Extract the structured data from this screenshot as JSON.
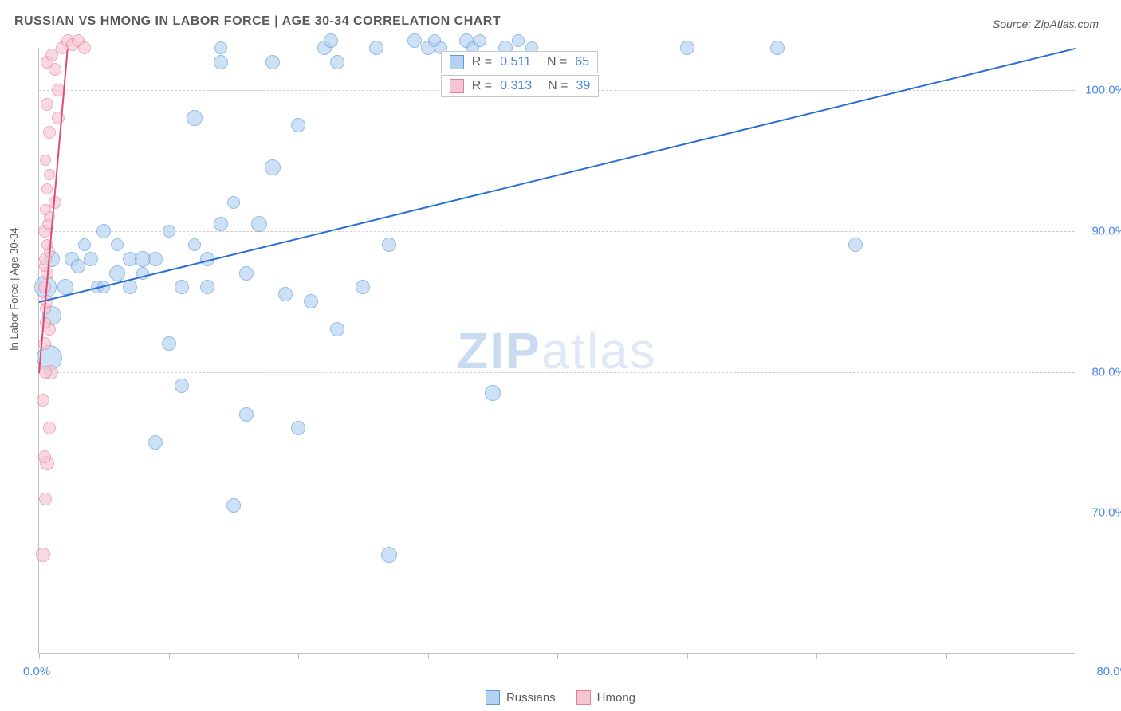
{
  "title": "RUSSIAN VS HMONG IN LABOR FORCE | AGE 30-34 CORRELATION CHART",
  "source": "Source: ZipAtlas.com",
  "watermark": {
    "zip": "ZIP",
    "atlas": "atlas"
  },
  "chart": {
    "type": "scatter",
    "ylabel": "In Labor Force | Age 30-34",
    "background_color": "#ffffff",
    "grid_color": "#cfcfcf",
    "axis_color": "#bfbfbf",
    "label_color": "#5a5a5a",
    "tick_color": "#4a86e8",
    "title_fontsize": 16,
    "label_fontsize": 13,
    "tick_fontsize": 15,
    "xlim": [
      0,
      80
    ],
    "ylim": [
      60,
      103
    ],
    "yticks": [
      70,
      80,
      90,
      100
    ],
    "ytick_labels": [
      "70.0%",
      "80.0%",
      "90.0%",
      "100.0%"
    ],
    "xticks_minor": [
      0,
      10,
      20,
      30,
      40,
      50,
      60,
      70,
      80
    ],
    "xtick_label_left": "0.0%",
    "xtick_label_right": "80.0%",
    "series": [
      {
        "name": "Russians",
        "color_fill": "#b3d1f0",
        "color_stroke": "#5a9ad6",
        "trend_color": "#2a6fd6",
        "trend": {
          "x1": 0,
          "y1": 85,
          "x2": 80,
          "y2": 103
        },
        "stats": {
          "R": "0.511",
          "N": "65"
        },
        "points": [
          {
            "x": 0.5,
            "y": 86,
            "r": 14
          },
          {
            "x": 0.8,
            "y": 81,
            "r": 16
          },
          {
            "x": 1,
            "y": 84,
            "r": 12
          },
          {
            "x": 1,
            "y": 88,
            "r": 10
          },
          {
            "x": 2,
            "y": 86,
            "r": 10
          },
          {
            "x": 2.5,
            "y": 88,
            "r": 9
          },
          {
            "x": 3,
            "y": 87.5,
            "r": 9
          },
          {
            "x": 3.5,
            "y": 89,
            "r": 8
          },
          {
            "x": 4,
            "y": 88,
            "r": 9
          },
          {
            "x": 4.5,
            "y": 86,
            "r": 8
          },
          {
            "x": 5,
            "y": 90,
            "r": 9
          },
          {
            "x": 5,
            "y": 86,
            "r": 8
          },
          {
            "x": 6,
            "y": 87,
            "r": 10
          },
          {
            "x": 6,
            "y": 89,
            "r": 8
          },
          {
            "x": 7,
            "y": 88,
            "r": 9
          },
          {
            "x": 7,
            "y": 86,
            "r": 9
          },
          {
            "x": 8,
            "y": 88,
            "r": 10
          },
          {
            "x": 8,
            "y": 87,
            "r": 8
          },
          {
            "x": 9,
            "y": 88,
            "r": 9
          },
          {
            "x": 9,
            "y": 75,
            "r": 9
          },
          {
            "x": 10,
            "y": 82,
            "r": 9
          },
          {
            "x": 10,
            "y": 90,
            "r": 8
          },
          {
            "x": 11,
            "y": 86,
            "r": 9
          },
          {
            "x": 11,
            "y": 79,
            "r": 9
          },
          {
            "x": 12,
            "y": 98,
            "r": 10
          },
          {
            "x": 12,
            "y": 89,
            "r": 8
          },
          {
            "x": 13,
            "y": 88,
            "r": 9
          },
          {
            "x": 13,
            "y": 86,
            "r": 9
          },
          {
            "x": 14,
            "y": 90.5,
            "r": 9
          },
          {
            "x": 14,
            "y": 102,
            "r": 9
          },
          {
            "x": 14,
            "y": 103,
            "r": 8
          },
          {
            "x": 15,
            "y": 70.5,
            "r": 9
          },
          {
            "x": 15,
            "y": 92,
            "r": 8
          },
          {
            "x": 16,
            "y": 87,
            "r": 9
          },
          {
            "x": 16,
            "y": 77,
            "r": 9
          },
          {
            "x": 17,
            "y": 90.5,
            "r": 10
          },
          {
            "x": 18,
            "y": 102,
            "r": 9
          },
          {
            "x": 18,
            "y": 94.5,
            "r": 10
          },
          {
            "x": 19,
            "y": 85.5,
            "r": 9
          },
          {
            "x": 20,
            "y": 76,
            "r": 9
          },
          {
            "x": 20,
            "y": 97.5,
            "r": 9
          },
          {
            "x": 21,
            "y": 85,
            "r": 9
          },
          {
            "x": 22,
            "y": 103,
            "r": 9
          },
          {
            "x": 22.5,
            "y": 103.5,
            "r": 9
          },
          {
            "x": 23,
            "y": 83,
            "r": 9
          },
          {
            "x": 23,
            "y": 102,
            "r": 9
          },
          {
            "x": 25,
            "y": 86,
            "r": 9
          },
          {
            "x": 26,
            "y": 103,
            "r": 9
          },
          {
            "x": 27,
            "y": 89,
            "r": 9
          },
          {
            "x": 27,
            "y": 67,
            "r": 10
          },
          {
            "x": 29,
            "y": 103.5,
            "r": 9
          },
          {
            "x": 30,
            "y": 103,
            "r": 9
          },
          {
            "x": 30.5,
            "y": 103.5,
            "r": 8
          },
          {
            "x": 31,
            "y": 103,
            "r": 8
          },
          {
            "x": 32,
            "y": 102,
            "r": 9
          },
          {
            "x": 33,
            "y": 103.5,
            "r": 9
          },
          {
            "x": 33.5,
            "y": 103,
            "r": 8
          },
          {
            "x": 34,
            "y": 103.5,
            "r": 8
          },
          {
            "x": 35,
            "y": 78.5,
            "r": 10
          },
          {
            "x": 36,
            "y": 103,
            "r": 9
          },
          {
            "x": 37,
            "y": 103.5,
            "r": 8
          },
          {
            "x": 38,
            "y": 103,
            "r": 8
          },
          {
            "x": 50,
            "y": 103,
            "r": 9
          },
          {
            "x": 57,
            "y": 103,
            "r": 9
          },
          {
            "x": 63,
            "y": 89,
            "r": 9
          }
        ]
      },
      {
        "name": "Hmong",
        "color_fill": "#f5c6d1",
        "color_stroke": "#e87c9a",
        "trend_color": "#e04a76",
        "trend": {
          "x1": 0,
          "y1": 80,
          "x2": 2.2,
          "y2": 103
        },
        "stats": {
          "R": "0.313",
          "N": "39"
        },
        "points": [
          {
            "x": 0.3,
            "y": 67,
            "r": 9
          },
          {
            "x": 0.5,
            "y": 71,
            "r": 8
          },
          {
            "x": 0.6,
            "y": 73.5,
            "r": 9
          },
          {
            "x": 0.4,
            "y": 74,
            "r": 8
          },
          {
            "x": 0.8,
            "y": 76,
            "r": 8
          },
          {
            "x": 0.3,
            "y": 78,
            "r": 8
          },
          {
            "x": 0.9,
            "y": 80,
            "r": 9
          },
          {
            "x": 0.5,
            "y": 80,
            "r": 8
          },
          {
            "x": 0.4,
            "y": 82,
            "r": 8
          },
          {
            "x": 0.8,
            "y": 83,
            "r": 8
          },
          {
            "x": 0.5,
            "y": 83.5,
            "r": 7
          },
          {
            "x": 0.5,
            "y": 84.5,
            "r": 7
          },
          {
            "x": 0.6,
            "y": 85,
            "r": 8
          },
          {
            "x": 0.4,
            "y": 86,
            "r": 8
          },
          {
            "x": 0.6,
            "y": 87,
            "r": 8
          },
          {
            "x": 0.4,
            "y": 87.5,
            "r": 7
          },
          {
            "x": 0.5,
            "y": 88,
            "r": 8
          },
          {
            "x": 0.8,
            "y": 88.5,
            "r": 7
          },
          {
            "x": 0.6,
            "y": 89,
            "r": 7
          },
          {
            "x": 0.4,
            "y": 90,
            "r": 8
          },
          {
            "x": 0.7,
            "y": 90.5,
            "r": 7
          },
          {
            "x": 0.8,
            "y": 91,
            "r": 7
          },
          {
            "x": 0.5,
            "y": 91.5,
            "r": 7
          },
          {
            "x": 1.2,
            "y": 92,
            "r": 8
          },
          {
            "x": 0.6,
            "y": 93,
            "r": 7
          },
          {
            "x": 0.8,
            "y": 94,
            "r": 7
          },
          {
            "x": 0.5,
            "y": 95,
            "r": 7
          },
          {
            "x": 0.8,
            "y": 97,
            "r": 8
          },
          {
            "x": 1.5,
            "y": 98,
            "r": 8
          },
          {
            "x": 0.6,
            "y": 99,
            "r": 8
          },
          {
            "x": 1.5,
            "y": 100,
            "r": 8
          },
          {
            "x": 1.2,
            "y": 101.5,
            "r": 8
          },
          {
            "x": 0.6,
            "y": 102,
            "r": 8
          },
          {
            "x": 1.0,
            "y": 102.5,
            "r": 8
          },
          {
            "x": 1.8,
            "y": 103,
            "r": 8
          },
          {
            "x": 2.2,
            "y": 103.5,
            "r": 8
          },
          {
            "x": 2.6,
            "y": 103.2,
            "r": 8
          },
          {
            "x": 3.0,
            "y": 103.5,
            "r": 8
          },
          {
            "x": 3.5,
            "y": 103,
            "r": 8
          }
        ]
      }
    ],
    "legend": {
      "label_russians": "Russians",
      "label_hmong": "Hmong"
    }
  }
}
